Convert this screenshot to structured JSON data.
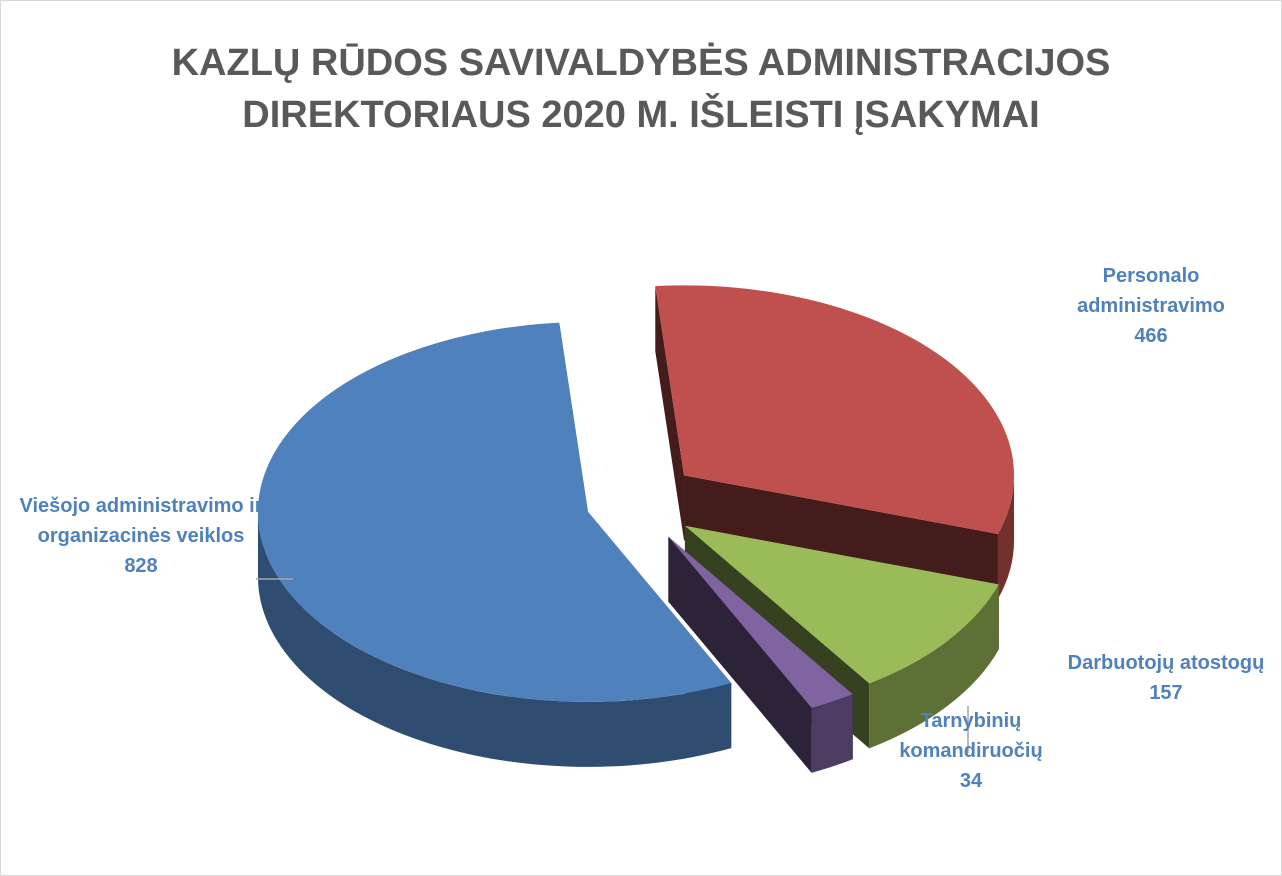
{
  "chart_data": {
    "type": "pie3d",
    "title": "KAZLŲ RŪDOS SAVIVALDYBĖS ADMINISTRACIJOS DIREKTORIAUS 2020 M. IŠLEISTI ĮSAKYMAI",
    "categories": [
      "Personalo administravimo",
      "Darbuotojų atostogų",
      "Tarnybinių komandiruočių",
      "Viešojo administravimo ir organizacinės veiklos"
    ],
    "values": [
      466,
      157,
      34,
      828
    ],
    "colors": [
      "#c0504d",
      "#9bbb59",
      "#8064a2",
      "#4f81bd"
    ]
  }
}
